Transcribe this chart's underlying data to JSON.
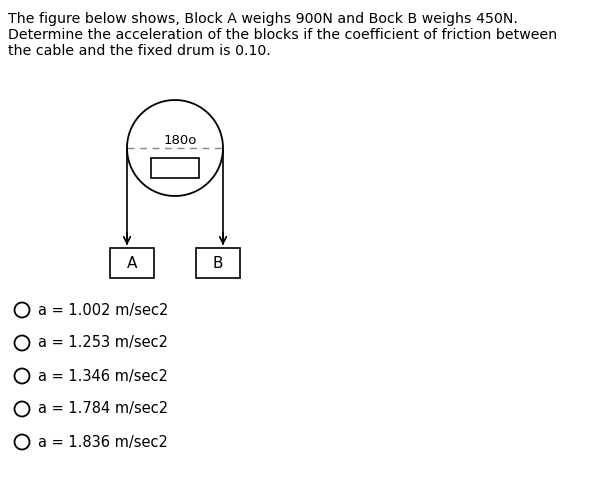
{
  "title_lines": [
    "The figure below shows, Block A weighs 900N and Bock B weighs 450N.",
    "Determine the acceleration of the blocks if the coefficient of friction between",
    "the cable and the fixed drum is 0.10."
  ],
  "drum_label": "180o",
  "block_a_label": "A",
  "block_b_label": "B",
  "options": [
    "a = 1.002 m/sec2",
    "a = 1.253 m/sec2",
    "a = 1.346 m/sec2",
    "a = 1.784 m/sec2",
    "a = 1.836 m/sec2"
  ],
  "bg_color": "#ffffff",
  "text_color": "#000000",
  "diagram_color": "#000000",
  "title_fontsize": 10.2,
  "option_fontsize": 10.5,
  "drum_label_fontsize": 9.5
}
